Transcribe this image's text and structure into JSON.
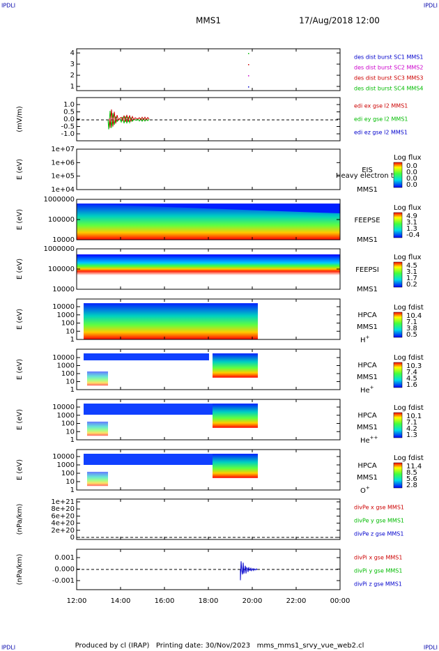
{
  "header": {
    "corner_label": "IPDLI",
    "spacecraft": "MMS1",
    "datetime": "17/Aug/2018 12:00"
  },
  "panels": [
    {
      "yticks": [
        "4",
        "3",
        "2",
        "1"
      ],
      "legend": [
        {
          "text": "des dist burst SC1 MMS1",
          "color": "#0000cc"
        },
        {
          "text": "des dist burst SC2 MMS2",
          "color": "#cc00cc"
        },
        {
          "text": "des dist burst SC3 MMS3",
          "color": "#cc0000"
        },
        {
          "text": "des dist burst SC4 MMS4",
          "color": "#00bb00"
        }
      ]
    },
    {
      "ylabel": "(mV/m)",
      "yticks": [
        "1.0",
        "0.5",
        "0.0",
        "-0.5",
        "-1.0"
      ],
      "legend": [
        {
          "text": "edi ex gse l2 MMS1",
          "color": "#cc0000"
        },
        {
          "text": "edi ey gse l2 MMS1",
          "color": "#00bb00"
        },
        {
          "text": "edi ez gse l2 MMS1",
          "color": "#0000cc"
        }
      ]
    },
    {
      "ylabel": "E (eV)",
      "yticks": [
        "1e+07",
        "1e+06",
        "1e+05",
        "1e+04"
      ],
      "instrument": "EIS",
      "spacecraft": "MMS1",
      "note": "Heavy electron to",
      "colorbar": {
        "title": "Log flux",
        "labels": [
          "0.0",
          "0.0",
          "0.0",
          "0.0"
        ]
      }
    },
    {
      "ylabel": "E (eV)",
      "yticks": [
        "1000000",
        "100000",
        "10000"
      ],
      "instrument": "FEEPSE",
      "spacecraft": "MMS1",
      "colorbar": {
        "title": "Log flux",
        "labels": [
          "4.9",
          "3.1",
          "1.3",
          "-0.4"
        ]
      }
    },
    {
      "ylabel": "E (eV)",
      "yticks": [
        "1000000",
        "100000",
        "10000"
      ],
      "instrument": "FEEPSI",
      "spacecraft": "MMS1",
      "colorbar": {
        "title": "Log flux",
        "labels": [
          "4.5",
          "3.1",
          "1.7",
          "0.2"
        ]
      }
    },
    {
      "ylabel": "E (eV)",
      "yticks": [
        "10000",
        "1000",
        "100",
        "10",
        "1"
      ],
      "instrument": "HPCA",
      "spacecraft": "MMS1",
      "species": {
        "base": "H",
        "charge": "+"
      },
      "colorbar": {
        "title": "Log fdist",
        "labels": [
          "10.4",
          "7.1",
          "3.8",
          "0.5"
        ]
      }
    },
    {
      "ylabel": "E (eV)",
      "yticks": [
        "10000",
        "1000",
        "100",
        "10",
        "1"
      ],
      "instrument": "HPCA",
      "spacecraft": "MMS1",
      "species": {
        "base": "He",
        "charge": "+"
      },
      "colorbar": {
        "title": "Log fdist",
        "labels": [
          "10.3",
          "7.4",
          "4.5",
          "1.6"
        ]
      }
    },
    {
      "ylabel": "E (eV)",
      "yticks": [
        "10000",
        "1000",
        "100",
        "10",
        "1"
      ],
      "instrument": "HPCA",
      "spacecraft": "MMS1",
      "species": {
        "base": "He",
        "charge": "++"
      },
      "colorbar": {
        "title": "Log fdist",
        "labels": [
          "10.1",
          "7.1",
          "4.2",
          "1.3"
        ]
      }
    },
    {
      "ylabel": "E (eV)",
      "yticks": [
        "10000",
        "1000",
        "100",
        "10",
        "1"
      ],
      "instrument": "HPCA",
      "spacecraft": "MMS1",
      "species": {
        "base": "O",
        "charge": "+"
      },
      "colorbar": {
        "title": "Log fdist",
        "labels": [
          "11.4",
          "8.5",
          "5.6",
          "2.8"
        ]
      }
    },
    {
      "ylabel": "(nPa/km)",
      "yticks": [
        "1e+21",
        "8e+20",
        "6e+20",
        "4e+20",
        "2e+20",
        "0"
      ],
      "legend": [
        {
          "text": "divPe x gse MMS1",
          "color": "#cc0000"
        },
        {
          "text": "divPe y gse MMS1",
          "color": "#00bb00"
        },
        {
          "text": "divPe z gse MMS1",
          "color": "#0000cc"
        }
      ]
    },
    {
      "ylabel": "(nPa/km)",
      "yticks": [
        "0.001",
        "0.000",
        "-0.001"
      ],
      "legend": [
        {
          "text": "divPi x gse MMS1",
          "color": "#cc0000"
        },
        {
          "text": "divPi y gse MMS1",
          "color": "#00bb00"
        },
        {
          "text": "divPi z gse MMS1",
          "color": "#0000cc"
        }
      ]
    }
  ],
  "xticks": [
    "12:00",
    "14:00",
    "16:00",
    "18:00",
    "20:00",
    "22:00",
    "00:00"
  ],
  "footer": "Produced by cl (IRAP)   Printing date: 30/Nov/2023   mms_mms1_srvy_vue_web2.cl"
}
